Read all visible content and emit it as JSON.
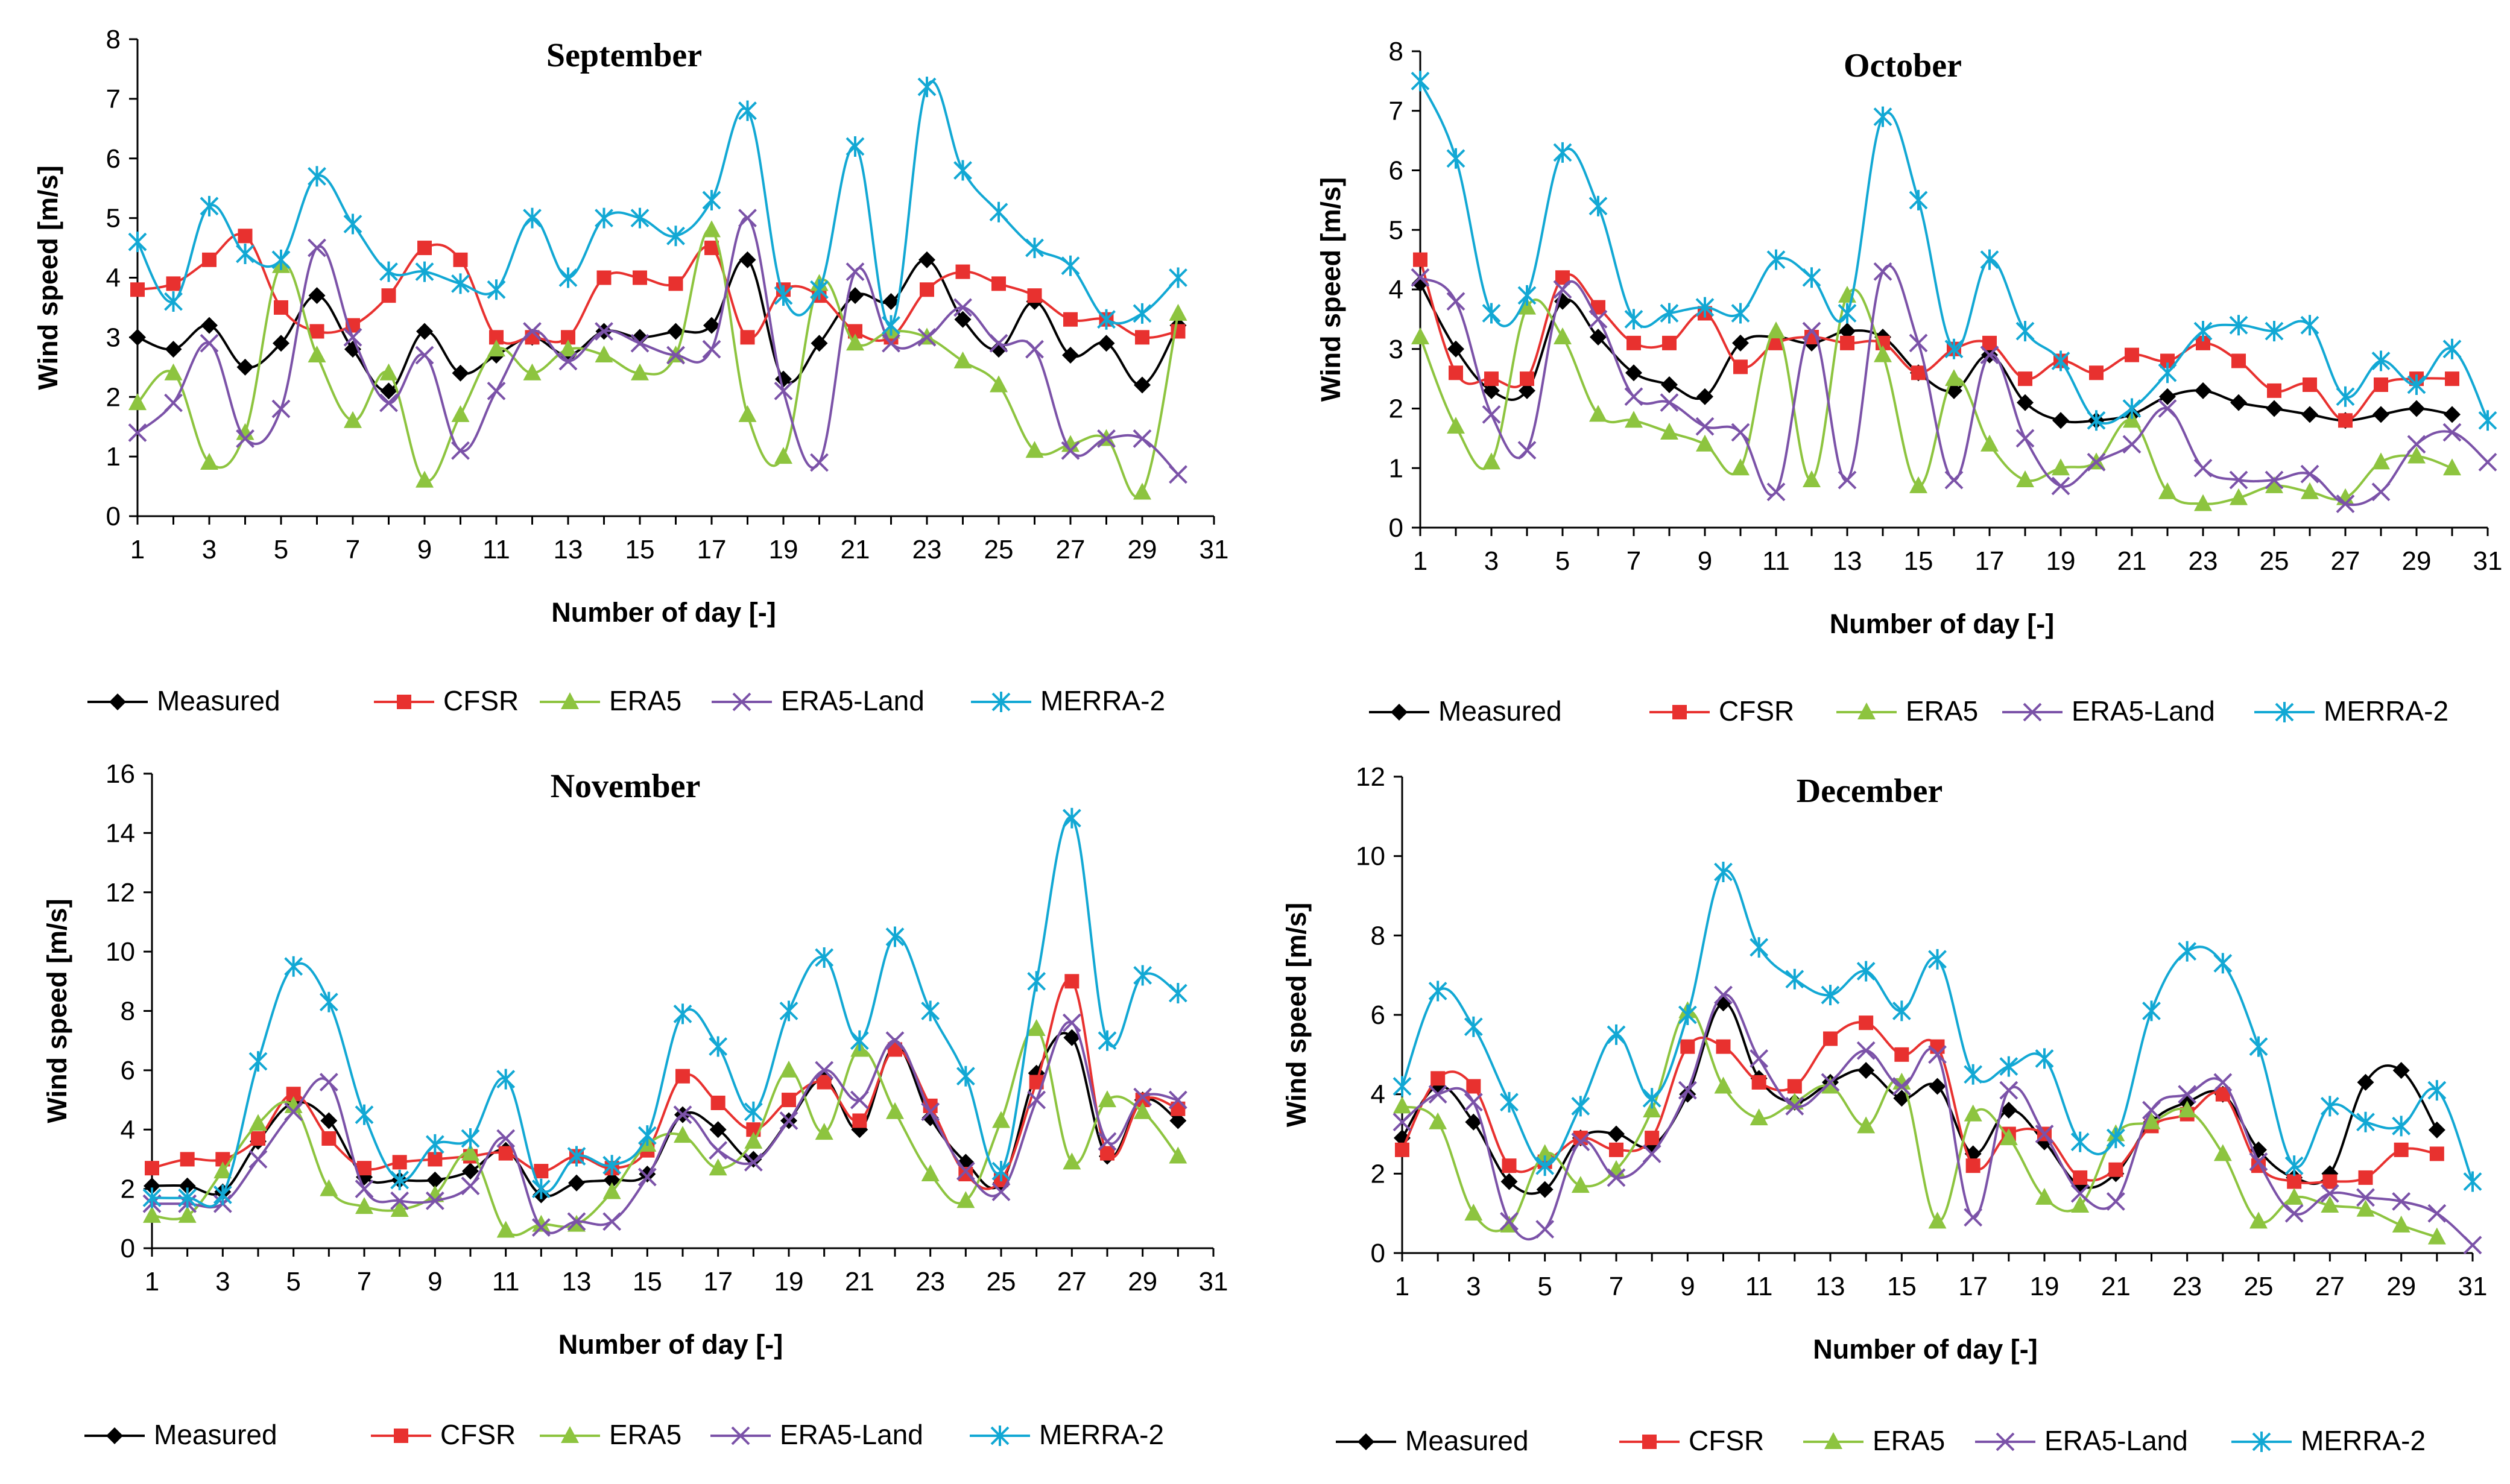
{
  "series_styles": [
    {
      "name": "Measured",
      "color": "#000000",
      "marker": "diamond"
    },
    {
      "name": "CFSR",
      "color": "#e8312f",
      "marker": "square"
    },
    {
      "name": "ERA5",
      "color": "#8dc43f",
      "marker": "triangle"
    },
    {
      "name": "ERA5-Land",
      "color": "#7b52a8",
      "marker": "x"
    },
    {
      "name": "MERRA-2",
      "color": "#12a8d4",
      "marker": "star"
    }
  ],
  "chart_data": [
    {
      "type": "line",
      "title": "September",
      "xlabel": "Number of day [-]",
      "ylabel": "Wind speed [m/s]",
      "xlim": [
        1,
        31
      ],
      "xticks": [
        1,
        3,
        5,
        7,
        9,
        11,
        13,
        15,
        17,
        19,
        21,
        23,
        25,
        27,
        29,
        31
      ],
      "ylim": [
        0,
        8
      ],
      "yticks": [
        0,
        1,
        2,
        3,
        4,
        5,
        6,
        7,
        8
      ],
      "legend": "bottom",
      "x": [
        1,
        2,
        3,
        4,
        5,
        6,
        7,
        8,
        9,
        10,
        11,
        12,
        13,
        14,
        15,
        16,
        17,
        18,
        19,
        20,
        21,
        22,
        23,
        24,
        25,
        26,
        27,
        28,
        29,
        30
      ],
      "series": [
        {
          "name": "Measured",
          "values": [
            3.0,
            2.8,
            3.2,
            2.5,
            2.9,
            3.7,
            2.8,
            2.1,
            3.1,
            2.4,
            2.7,
            3.0,
            2.7,
            3.1,
            3.0,
            3.1,
            3.2,
            4.3,
            2.3,
            2.9,
            3.7,
            3.6,
            4.3,
            3.3,
            2.8,
            3.6,
            2.7,
            2.9,
            2.2,
            3.2
          ]
        },
        {
          "name": "CFSR",
          "values": [
            3.8,
            3.9,
            4.3,
            4.7,
            3.5,
            3.1,
            3.2,
            3.7,
            4.5,
            4.3,
            3.0,
            3.0,
            3.0,
            4.0,
            4.0,
            3.9,
            4.5,
            3.0,
            3.8,
            3.7,
            3.1,
            3.0,
            3.8,
            4.1,
            3.9,
            3.7,
            3.3,
            3.3,
            3.0,
            3.1
          ]
        },
        {
          "name": "ERA5",
          "values": [
            1.9,
            2.4,
            0.9,
            1.4,
            4.2,
            2.7,
            1.6,
            2.4,
            0.6,
            1.7,
            2.8,
            2.4,
            2.8,
            2.7,
            2.4,
            2.7,
            4.8,
            1.7,
            1.0,
            3.9,
            2.9,
            3.1,
            3.0,
            2.6,
            2.2,
            1.1,
            1.2,
            1.3,
            0.4,
            3.4
          ]
        },
        {
          "name": "ERA5-Land",
          "values": [
            1.4,
            1.9,
            2.9,
            1.3,
            1.8,
            4.5,
            3.0,
            1.9,
            2.7,
            1.1,
            2.1,
            3.1,
            2.6,
            3.1,
            2.9,
            2.7,
            2.8,
            5.0,
            2.1,
            0.9,
            4.1,
            2.9,
            3.0,
            3.5,
            2.9,
            2.8,
            1.1,
            1.3,
            1.3,
            0.7
          ]
        },
        {
          "name": "MERRA-2",
          "values": [
            4.6,
            3.6,
            5.2,
            4.4,
            4.3,
            5.7,
            4.9,
            4.1,
            4.1,
            3.9,
            3.8,
            5.0,
            4.0,
            5.0,
            5.0,
            4.7,
            5.3,
            6.8,
            3.7,
            3.8,
            6.2,
            3.2,
            7.2,
            5.8,
            5.1,
            4.5,
            4.2,
            3.3,
            3.4,
            4.0
          ]
        }
      ]
    },
    {
      "type": "line",
      "title": "October",
      "xlabel": "Number of day [-]",
      "ylabel": "Wind speed [m/s]",
      "xlim": [
        1,
        31
      ],
      "xticks": [
        1,
        3,
        5,
        7,
        9,
        11,
        13,
        15,
        17,
        19,
        21,
        23,
        25,
        27,
        29,
        31
      ],
      "ylim": [
        0,
        8
      ],
      "yticks": [
        0,
        1,
        2,
        3,
        4,
        5,
        6,
        7,
        8
      ],
      "legend": "bottom",
      "x": [
        1,
        2,
        3,
        4,
        5,
        6,
        7,
        8,
        9,
        10,
        11,
        12,
        13,
        14,
        15,
        16,
        17,
        18,
        19,
        20,
        21,
        22,
        23,
        24,
        25,
        26,
        27,
        28,
        29,
        30,
        31
      ],
      "series": [
        {
          "name": "Measured",
          "values": [
            4.1,
            3.0,
            2.3,
            2.3,
            3.8,
            3.2,
            2.6,
            2.4,
            2.2,
            3.1,
            3.2,
            3.1,
            3.3,
            3.2,
            2.6,
            2.3,
            2.9,
            2.1,
            1.8,
            1.8,
            1.9,
            2.2,
            2.3,
            2.1,
            2.0,
            1.9,
            1.8,
            1.9,
            2.0,
            1.9,
            null
          ]
        },
        {
          "name": "CFSR",
          "values": [
            4.5,
            2.6,
            2.5,
            2.5,
            4.2,
            3.7,
            3.1,
            3.1,
            3.6,
            2.7,
            3.1,
            3.2,
            3.1,
            3.1,
            2.6,
            3.0,
            3.1,
            2.5,
            2.8,
            2.6,
            2.9,
            2.8,
            3.1,
            2.8,
            2.3,
            2.4,
            1.8,
            2.4,
            2.5,
            2.5,
            null
          ]
        },
        {
          "name": "ERA5",
          "values": [
            3.2,
            1.7,
            1.1,
            3.7,
            3.2,
            1.9,
            1.8,
            1.6,
            1.4,
            1.0,
            3.3,
            0.8,
            3.9,
            2.9,
            0.7,
            2.5,
            1.4,
            0.8,
            1.0,
            1.1,
            1.8,
            0.6,
            0.4,
            0.5,
            0.7,
            0.6,
            0.5,
            1.1,
            1.2,
            1.0,
            null
          ]
        },
        {
          "name": "ERA5-Land",
          "values": [
            4.2,
            3.8,
            1.9,
            1.3,
            4.0,
            3.5,
            2.2,
            2.1,
            1.7,
            1.6,
            0.6,
            3.3,
            0.8,
            4.3,
            3.1,
            0.8,
            2.9,
            1.5,
            0.7,
            1.1,
            1.4,
            2.0,
            1.0,
            0.8,
            0.8,
            0.9,
            0.4,
            0.6,
            1.4,
            1.6,
            1.1
          ]
        },
        {
          "name": "MERRA-2",
          "values": [
            7.5,
            6.2,
            3.6,
            3.9,
            6.3,
            5.4,
            3.5,
            3.6,
            3.7,
            3.6,
            4.5,
            4.2,
            3.6,
            6.9,
            5.5,
            3.0,
            4.5,
            3.3,
            2.8,
            1.8,
            2.0,
            2.6,
            3.3,
            3.4,
            3.3,
            3.4,
            2.2,
            2.8,
            2.4,
            3.0,
            1.8
          ]
        }
      ]
    },
    {
      "type": "line",
      "title": "November",
      "xlabel": "Number of day [-]",
      "ylabel": "Wind speed [m/s]",
      "xlim": [
        1,
        31
      ],
      "xticks": [
        1,
        3,
        5,
        7,
        9,
        11,
        13,
        15,
        17,
        19,
        21,
        23,
        25,
        27,
        29,
        31
      ],
      "ylim": [
        0,
        16
      ],
      "yticks": [
        0,
        2,
        4,
        6,
        8,
        10,
        12,
        14,
        16
      ],
      "legend": "bottom",
      "x": [
        1,
        2,
        3,
        4,
        5,
        6,
        7,
        8,
        9,
        10,
        11,
        12,
        13,
        14,
        15,
        16,
        17,
        18,
        19,
        20,
        21,
        22,
        23,
        24,
        25,
        26,
        27,
        28,
        29,
        30
      ],
      "series": [
        {
          "name": "Measured",
          "values": [
            2.1,
            2.1,
            1.9,
            3.6,
            4.9,
            4.3,
            2.4,
            2.3,
            2.3,
            2.6,
            3.3,
            1.8,
            2.2,
            2.3,
            2.5,
            4.5,
            4.0,
            3.0,
            4.3,
            5.7,
            4.0,
            6.8,
            4.4,
            2.9,
            2.2,
            5.9,
            7.1,
            3.1,
            5.0,
            4.3
          ]
        },
        {
          "name": "CFSR",
          "values": [
            2.7,
            3.0,
            3.0,
            3.7,
            5.2,
            3.7,
            2.7,
            2.9,
            3.0,
            3.1,
            3.2,
            2.6,
            3.1,
            2.7,
            3.3,
            5.8,
            4.9,
            4.0,
            5.0,
            5.6,
            4.3,
            6.7,
            4.8,
            2.5,
            2.3,
            5.6,
            9.0,
            3.2,
            5.0,
            4.7
          ]
        },
        {
          "name": "ERA5",
          "values": [
            1.1,
            1.1,
            2.6,
            4.2,
            4.8,
            2.0,
            1.4,
            1.3,
            1.8,
            3.2,
            0.6,
            0.8,
            0.8,
            1.9,
            3.5,
            3.8,
            2.7,
            3.6,
            6.0,
            3.9,
            6.7,
            4.6,
            2.5,
            1.6,
            4.3,
            7.4,
            2.9,
            5.0,
            4.6,
            3.1
          ]
        },
        {
          "name": "ERA5-Land",
          "values": [
            1.5,
            1.5,
            1.5,
            3.0,
            4.6,
            5.6,
            2.0,
            1.6,
            1.6,
            2.1,
            3.7,
            0.7,
            0.9,
            0.9,
            2.4,
            4.5,
            3.3,
            2.9,
            4.3,
            6.0,
            5.0,
            7.0,
            4.6,
            2.6,
            1.9,
            5.0,
            7.6,
            3.6,
            5.1,
            5.0
          ]
        },
        {
          "name": "MERRA-2",
          "values": [
            1.7,
            1.7,
            1.8,
            6.3,
            9.5,
            8.3,
            4.5,
            2.3,
            3.5,
            3.7,
            5.7,
            2.0,
            3.1,
            2.8,
            3.8,
            7.9,
            6.8,
            4.6,
            8.0,
            9.8,
            7.0,
            10.5,
            8.0,
            5.8,
            2.6,
            9.0,
            14.5,
            7.0,
            9.2,
            8.6
          ]
        }
      ]
    },
    {
      "type": "line",
      "title": "December",
      "xlabel": "Number of day [-]",
      "ylabel": "Wind speed [m/s]",
      "xlim": [
        1,
        31
      ],
      "xticks": [
        1,
        3,
        5,
        7,
        9,
        11,
        13,
        15,
        17,
        19,
        21,
        23,
        25,
        27,
        29,
        31
      ],
      "ylim": [
        0,
        12
      ],
      "yticks": [
        0,
        2,
        4,
        6,
        8,
        10,
        12
      ],
      "legend": "bottom",
      "x": [
        1,
        2,
        3,
        4,
        5,
        6,
        7,
        8,
        9,
        10,
        11,
        12,
        13,
        14,
        15,
        16,
        17,
        18,
        19,
        20,
        21,
        22,
        23,
        24,
        25,
        26,
        27,
        28,
        29,
        30,
        31
      ],
      "series": [
        {
          "name": "Measured",
          "values": [
            2.9,
            4.2,
            3.3,
            1.8,
            1.6,
            2.9,
            3.0,
            2.7,
            4.0,
            6.3,
            4.4,
            3.8,
            4.3,
            4.6,
            3.9,
            4.2,
            2.5,
            3.6,
            2.8,
            1.7,
            2.0,
            3.3,
            3.8,
            4.0,
            2.6,
            1.9,
            2.0,
            4.3,
            4.6,
            3.1,
            null
          ]
        },
        {
          "name": "CFSR",
          "values": [
            2.6,
            4.4,
            4.2,
            2.2,
            2.3,
            2.9,
            2.6,
            2.9,
            5.2,
            5.2,
            4.3,
            4.2,
            5.4,
            5.8,
            5.0,
            5.2,
            2.2,
            3.0,
            3.0,
            1.9,
            2.1,
            3.2,
            3.5,
            4.0,
            2.2,
            1.8,
            1.8,
            1.9,
            2.6,
            2.5,
            null
          ]
        },
        {
          "name": "ERA5",
          "values": [
            3.7,
            3.3,
            1.0,
            0.7,
            2.5,
            1.7,
            2.1,
            3.6,
            6.1,
            4.2,
            3.4,
            3.8,
            4.2,
            3.2,
            4.3,
            0.8,
            3.5,
            2.9,
            1.4,
            1.2,
            3.0,
            3.3,
            3.6,
            2.5,
            0.8,
            1.4,
            1.2,
            1.1,
            0.7,
            0.4,
            null
          ]
        },
        {
          "name": "ERA5-Land",
          "values": [
            3.3,
            4.0,
            3.8,
            0.8,
            0.6,
            2.8,
            1.9,
            2.5,
            4.1,
            6.5,
            4.9,
            3.7,
            4.3,
            5.1,
            4.2,
            5.0,
            0.9,
            4.1,
            3.0,
            1.5,
            1.3,
            3.6,
            4.0,
            4.3,
            2.3,
            1.0,
            1.5,
            1.4,
            1.3,
            1.0,
            0.2
          ]
        },
        {
          "name": "MERRA-2",
          "values": [
            4.2,
            6.6,
            5.7,
            3.8,
            2.2,
            3.7,
            5.5,
            3.9,
            6.0,
            9.6,
            7.7,
            6.9,
            6.5,
            7.1,
            6.1,
            7.4,
            4.5,
            4.7,
            4.9,
            2.8,
            2.9,
            6.1,
            7.6,
            7.3,
            5.2,
            2.2,
            3.7,
            3.3,
            3.2,
            4.1,
            1.8
          ]
        }
      ]
    }
  ]
}
